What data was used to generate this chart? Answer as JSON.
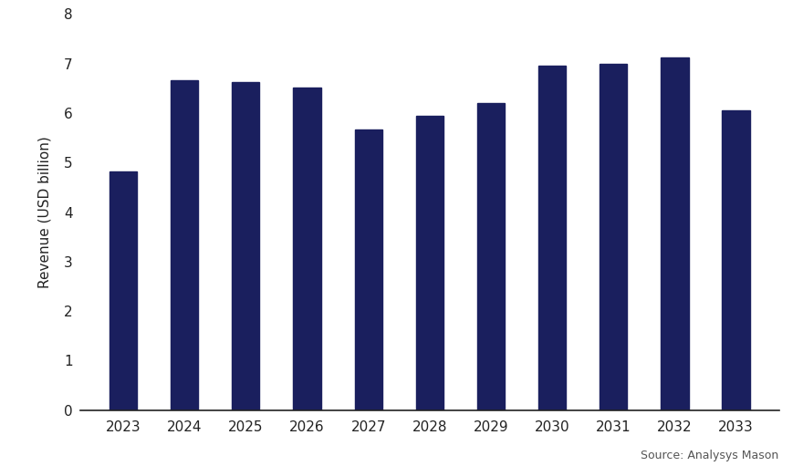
{
  "years": [
    2023,
    2024,
    2025,
    2026,
    2027,
    2028,
    2029,
    2030,
    2031,
    2032,
    2033
  ],
  "values": [
    4.82,
    6.67,
    6.62,
    6.52,
    5.67,
    5.94,
    6.2,
    6.95,
    7.0,
    7.12,
    6.05
  ],
  "bar_color": "#1a1f5e",
  "ylabel": "Revenue (USD billion)",
  "ylim": [
    0,
    8
  ],
  "yticks": [
    0,
    1,
    2,
    3,
    4,
    5,
    6,
    7,
    8
  ],
  "source_text": "Source: Analysys Mason",
  "background_color": "#ffffff",
  "bar_width": 0.45
}
